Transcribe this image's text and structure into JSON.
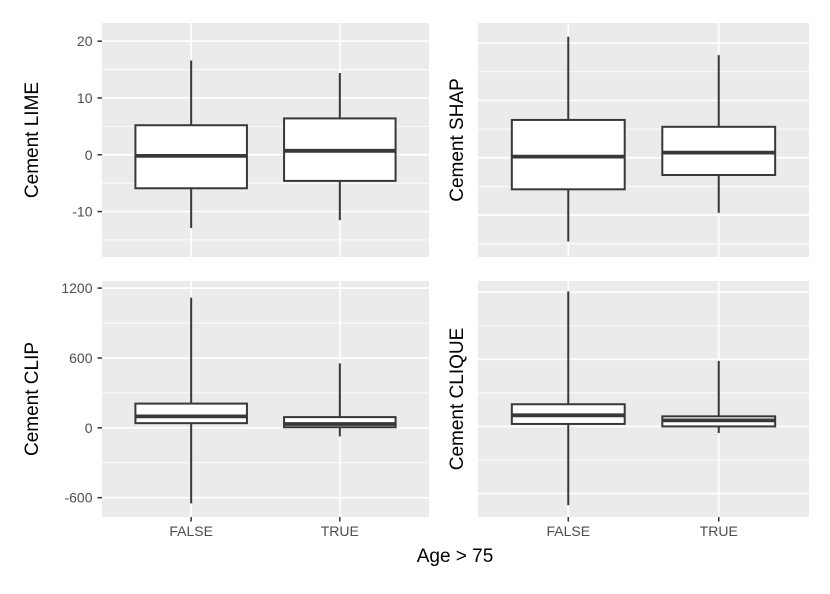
{
  "chart_data": {
    "type": "boxplot",
    "layout": "2x2 panel grid, shared x categories, y tick labels only on left column, x tick labels only on bottom row",
    "x_categories": [
      "FALSE",
      "TRUE"
    ],
    "xlabel": "Age > 75",
    "legend": "none",
    "grid": "white major and minor gridlines on gray panel",
    "panels": [
      {
        "ylabel": "Cement LIME",
        "row": 0,
        "col": 0,
        "ylim": [
          -18,
          23.2
        ],
        "yticks": [
          20,
          10,
          0,
          -10
        ],
        "yminor": [
          15,
          5,
          -5,
          -15
        ],
        "show_ytick_labels": true,
        "show_xtick_labels": false,
        "boxes": [
          {
            "category": "FALSE",
            "whisker_low": -12.9,
            "q1": -5.9,
            "median": -0.2,
            "q3": 5.2,
            "whisker_high": 16.6
          },
          {
            "category": "TRUE",
            "whisker_low": -11.5,
            "q1": -4.6,
            "median": 0.7,
            "q3": 6.4,
            "whisker_high": 14.4
          }
        ]
      },
      {
        "ylabel": "Cement SHAP",
        "row": 0,
        "col": 1,
        "ylim": [
          -17.3,
          23.5
        ],
        "yticks": [
          20,
          10,
          0,
          -10
        ],
        "yminor": [
          15,
          5,
          -5,
          -15
        ],
        "show_ytick_labels": false,
        "show_xtick_labels": false,
        "boxes": [
          {
            "category": "FALSE",
            "whisker_low": -14.6,
            "q1": -5.5,
            "median": 0.2,
            "q3": 6.6,
            "whisker_high": 21.1
          },
          {
            "category": "TRUE",
            "whisker_low": -9.6,
            "q1": -3.0,
            "median": 0.9,
            "q3": 5.4,
            "whisker_high": 17.9
          }
        ]
      },
      {
        "ylabel": "Cement CLIP",
        "row": 1,
        "col": 0,
        "ylim": [
          -766,
          1261
        ],
        "yticks": [
          1200,
          600,
          0,
          -600
        ],
        "yminor": [
          900,
          300,
          -300
        ],
        "show_ytick_labels": true,
        "show_xtick_labels": true,
        "boxes": [
          {
            "category": "FALSE",
            "whisker_low": -649,
            "q1": 40,
            "median": 98,
            "q3": 208,
            "whisker_high": 1117
          },
          {
            "category": "TRUE",
            "whisker_low": -73,
            "q1": 5,
            "median": 33,
            "q3": 92,
            "whisker_high": 554
          }
        ]
      },
      {
        "ylabel": "Cement CLIQUE",
        "row": 1,
        "col": 1,
        "ylim": [
          -810,
          1300
        ],
        "yticks": [
          1200,
          600,
          0,
          -600
        ],
        "yminor": [
          900,
          300,
          -300
        ],
        "show_ytick_labels": false,
        "show_xtick_labels": true,
        "boxes": [
          {
            "category": "FALSE",
            "whisker_low": -705,
            "q1": 22,
            "median": 99,
            "q3": 198,
            "whisker_high": 1207
          },
          {
            "category": "TRUE",
            "whisker_low": -59,
            "q1": 0,
            "median": 54,
            "q3": 90,
            "whisker_high": 586
          }
        ]
      }
    ],
    "colors": {
      "figure_background": "#FFFFFF",
      "panel_background": "#EBEBEB",
      "grid_line": "#FFFFFF",
      "box_stroke": "#383838",
      "box_fill": "#FFFFFF",
      "tick_mark": "#333333",
      "axis_text": "#4D4D4D",
      "axis_title": "#000000"
    }
  }
}
